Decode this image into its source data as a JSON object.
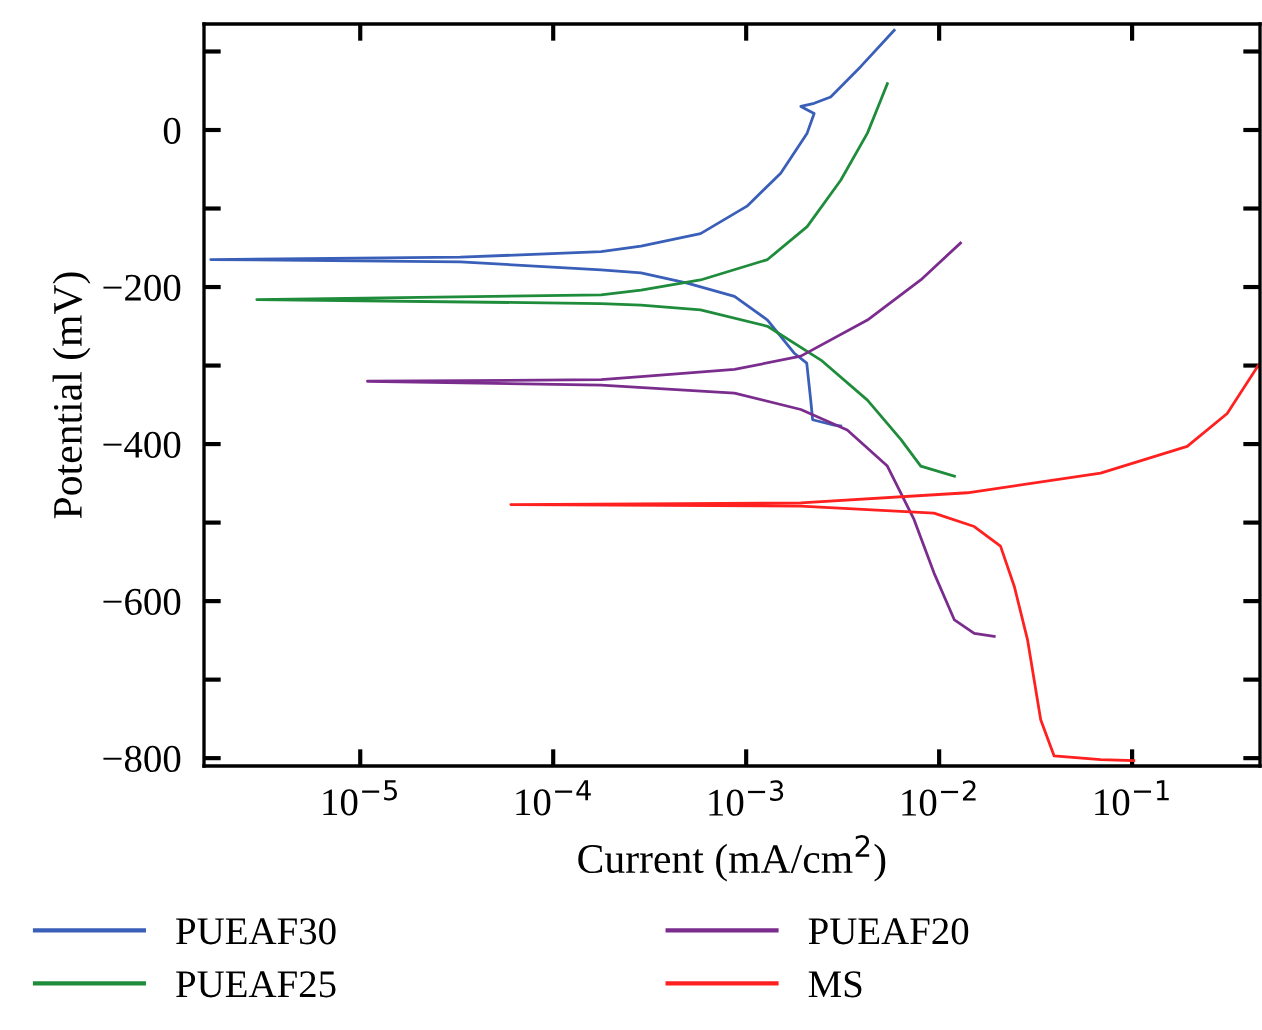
{
  "chart_data": {
    "type": "line",
    "xlabel": "Current (mA/cm$^{2}$)",
    "ylabel": "Potential (mV)",
    "log": "x",
    "xlim": [
      1.55e-06,
      0.46
    ],
    "ylim": [
      -810,
      135
    ],
    "xticks": [
      {
        "value": 1e-05,
        "label": "10$^{−5}$"
      },
      {
        "value": 0.0001,
        "label": "10$^{−4}$"
      },
      {
        "value": 0.001,
        "label": "10$^{−3}$"
      },
      {
        "value": 0.01,
        "label": "10$^{−2}$"
      },
      {
        "value": 0.1,
        "label": "10$^{−1}$"
      }
    ],
    "yticks": [
      {
        "value": 100,
        "label": null
      },
      0,
      {
        "value": -100,
        "label": null
      },
      -200,
      {
        "value": -300,
        "label": null
      },
      -400,
      {
        "value": -500,
        "label": null
      },
      -600,
      {
        "value": -700,
        "label": null
      },
      -800
    ],
    "grid": false,
    "legend": "bottom",
    "marker": "none",
    "line_style": "solid",
    "series": [
      {
        "name": "PUEAF30",
        "color": "#3a5fb8",
        "x": [
          0.00309,
          0.00286,
          0.00221,
          0.00216,
          0.00206,
          0.00177,
          0.00129,
          0.00087,
          0.000495,
          0.000285,
          0.000177,
          3.3e-05,
          1.68e-06,
          3.3e-05,
          0.000177,
          0.000285,
          0.00058,
          0.00101,
          0.00151,
          0.00207,
          0.00225,
          0.00192,
          0.00225,
          0.00274,
          0.00393,
          0.00585
        ],
        "values": [
          -377,
          -376,
          -369,
          -344,
          -297,
          -284,
          -242,
          -212,
          -195,
          -182,
          -178,
          -168,
          -165,
          -162,
          -155,
          -148,
          -132,
          -97,
          -55,
          -4,
          21,
          30,
          34,
          42,
          81,
          127
        ]
      },
      {
        "name": "PUEAF25",
        "color": "#1e8c3a",
        "x": [
          0.012,
          0.00803,
          0.00633,
          0.00425,
          0.00244,
          0.00129,
          0.00058,
          0.000285,
          0.000177,
          2.91e-06,
          0.000177,
          0.000285,
          0.00058,
          0.00129,
          0.00207,
          0.00309,
          0.00425,
          0.00498,
          0.00539
        ],
        "values": [
          -441,
          -428,
          -394,
          -344,
          -293,
          -250,
          -229,
          -223,
          -221,
          -216,
          -210,
          -204,
          -191,
          -165,
          -123,
          -64,
          -4,
          38,
          59
        ]
      },
      {
        "name": "PUEAF20",
        "color": "#7b2d8e",
        "x": [
          0.0193,
          0.0152,
          0.012,
          0.0094,
          0.00741,
          0.00539,
          0.00334,
          0.00192,
          0.00087,
          0.000177,
          1.09e-05,
          0.000177,
          0.000285,
          0.00087,
          0.00192,
          0.00425,
          0.00803,
          0.0129
        ],
        "values": [
          -645,
          -641,
          -624,
          -564,
          -496,
          -428,
          -382,
          -356,
          -335,
          -325,
          -320,
          -318,
          -314,
          -305,
          -288,
          -242,
          -191,
          -144
        ]
      },
      {
        "name": "MS",
        "color": "#ff2020",
        "x": [
          0.102,
          0.0687,
          0.0394,
          0.0336,
          0.0287,
          0.0245,
          0.0208,
          0.0152,
          0.0094,
          0.00192,
          6.03e-05,
          0.00192,
          0.014,
          0.0687,
          0.193,
          0.311,
          0.45
        ],
        "values": [
          -803,
          -802,
          -797,
          -751,
          -649,
          -581,
          -530,
          -505,
          -488,
          -479,
          -477,
          -475,
          -462,
          -437,
          -403,
          -361,
          -300
        ]
      }
    ]
  }
}
